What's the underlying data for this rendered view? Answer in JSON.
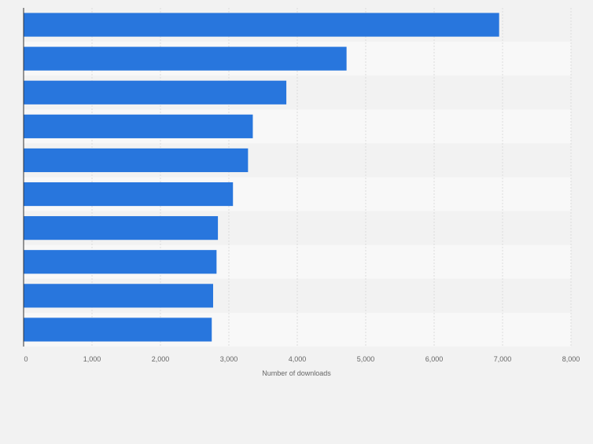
{
  "chart_data": {
    "type": "bar",
    "orientation": "horizontal",
    "categories": [
      "",
      "",
      "",
      "",
      "",
      "",
      "",
      "",
      "",
      ""
    ],
    "values": [
      6950,
      4720,
      3840,
      3350,
      3280,
      3060,
      2840,
      2820,
      2770,
      2750
    ],
    "xlabel": "Number of downloads",
    "ylabel": "",
    "xlim": [
      0,
      8000
    ],
    "ticks": [
      0,
      1000,
      2000,
      3000,
      4000,
      5000,
      6000,
      7000,
      8000
    ],
    "tick_labels": [
      "0",
      "1,000",
      "2,000",
      "3,000",
      "4,000",
      "5,000",
      "6,000",
      "7,000",
      "8,000"
    ],
    "grid": true,
    "legend": "none",
    "colors": {
      "bar": "#2876dd",
      "band_dark": "#f2f2f2",
      "band_light": "#f8f8f8",
      "grid": "#dcdcdc",
      "axis": "#333333",
      "tick_text": "#666666"
    }
  }
}
